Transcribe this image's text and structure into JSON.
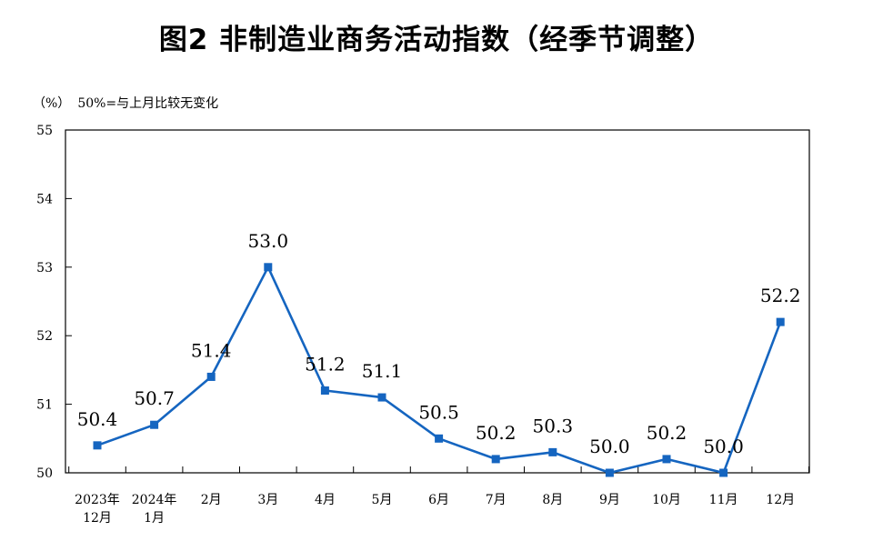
{
  "chart_data": {
    "type": "line",
    "title": "图2  非制造业商务活动指数（经季节调整）",
    "ylabel": "（%）",
    "note": "50%=与上月比较无变化",
    "ylim": [
      50,
      55
    ],
    "yticks": [
      "50",
      "51",
      "52",
      "53",
      "54",
      "55"
    ],
    "categories": [
      [
        "2023年",
        "12月"
      ],
      [
        "2024年",
        "1月"
      ],
      [
        "2月"
      ],
      [
        "3月"
      ],
      [
        "4月"
      ],
      [
        "5月"
      ],
      [
        "6月"
      ],
      [
        "7月"
      ],
      [
        "8月"
      ],
      [
        "9月"
      ],
      [
        "10月"
      ],
      [
        "11月"
      ],
      [
        "12月"
      ]
    ],
    "series": [
      {
        "values": [
          50.4,
          50.7,
          51.4,
          53.0,
          51.2,
          51.1,
          50.5,
          50.2,
          50.3,
          50.0,
          50.2,
          50.0,
          52.2
        ],
        "labels": [
          "50.4",
          "50.7",
          "51.4",
          "53.0",
          "51.2",
          "51.1",
          "50.5",
          "50.2",
          "50.3",
          "50.0",
          "50.2",
          "50.0",
          "52.2"
        ],
        "color": "#1565C0"
      }
    ],
    "grid": false,
    "legend": "none"
  }
}
